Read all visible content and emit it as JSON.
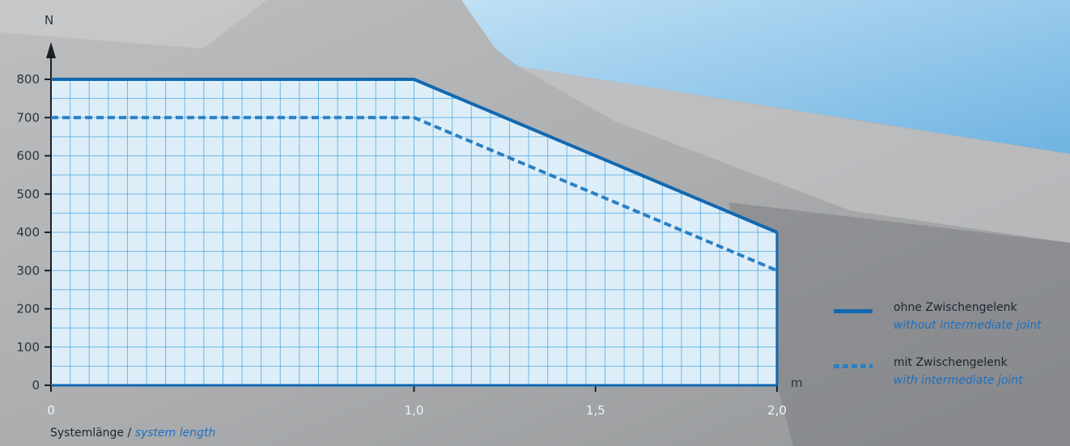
{
  "chart_data": {
    "type": "area",
    "y_unit": "N",
    "x_unit": "m",
    "y_ticks": [
      "0",
      "100",
      "200",
      "300",
      "400",
      "500",
      "600",
      "700",
      "800"
    ],
    "x_ticks": [
      "0",
      "1,0",
      "1,5",
      "2,0"
    ],
    "xlim": [
      0,
      2.0
    ],
    "ylim": [
      0,
      800
    ],
    "grid": true,
    "legend_position": "right",
    "xlabel_de": "Systemlänge",
    "xlabel_sep": " / ",
    "xlabel_en": "system length",
    "series": [
      {
        "name_de": "ohne Zwischengelenk",
        "name_en": "without intermediate joint",
        "style": "solid",
        "x": [
          0,
          1.0,
          2.0
        ],
        "y": [
          800,
          800,
          400
        ]
      },
      {
        "name_de": "mit Zwischengelenk",
        "name_en": "with intermediate joint",
        "style": "dashed",
        "x": [
          0,
          1.0,
          2.0
        ],
        "y": [
          700,
          700,
          300
        ]
      }
    ],
    "colors": {
      "line": "#1268b0",
      "dashed": "#2a7fc4",
      "fill": "#dff0fb",
      "grid": "#4aa6e0"
    }
  }
}
